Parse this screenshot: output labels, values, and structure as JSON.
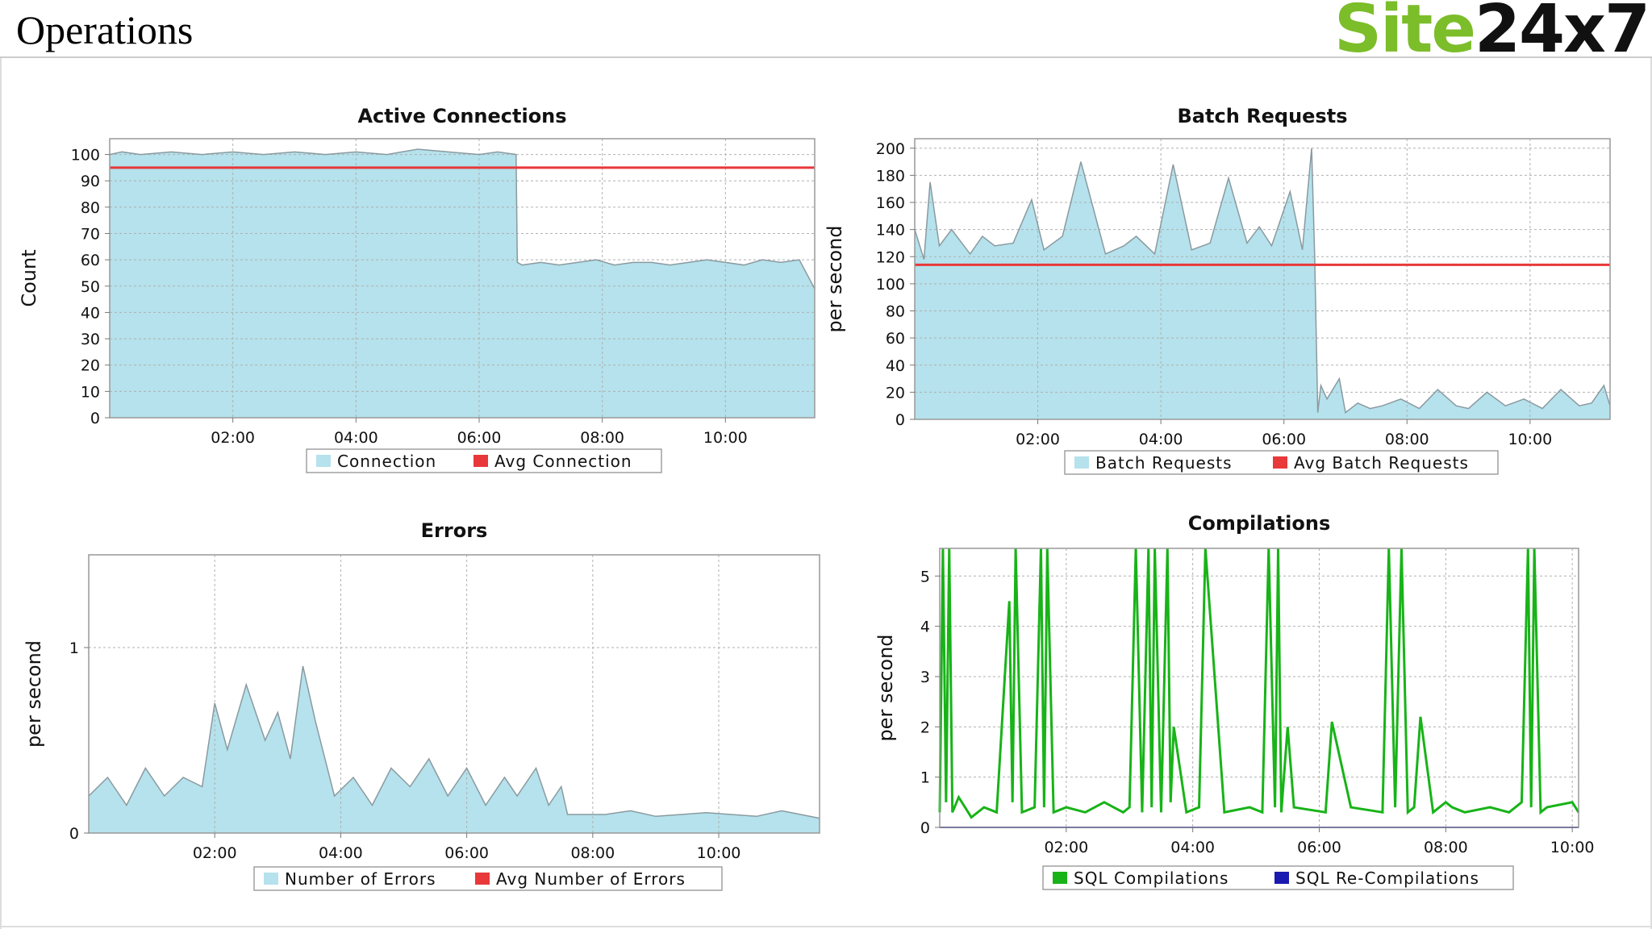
{
  "header": {
    "title": "Operations",
    "logo_part1": "Site",
    "logo_part2": "24x7"
  },
  "colors": {
    "area_fill": "#b5e2ec",
    "area_line": "#8a9aa0",
    "avg_line": "#e8383a",
    "green_series": "#18b318",
    "blue_series": "#1a1ab0",
    "grid": "#b0b0b0",
    "logo_green": "#7cbd2a"
  },
  "chart_data": [
    {
      "id": "active",
      "type": "area",
      "title": "Active Connections",
      "xlabel": "",
      "ylabel": "Count",
      "xlim": [
        0,
        11.45
      ],
      "ylim": [
        0,
        106
      ],
      "yticks": [
        0,
        10,
        20,
        30,
        40,
        50,
        60,
        70,
        80,
        90,
        100
      ],
      "xticks": [
        2,
        4,
        6,
        8,
        10
      ],
      "xticklabels": [
        "02:00",
        "04:00",
        "06:00",
        "08:00",
        "10:00"
      ],
      "grid": true,
      "legend": "bottom",
      "series": [
        {
          "name": "Connection",
          "role": "area",
          "x": [
            0,
            0.2,
            0.5,
            1.0,
            1.5,
            2.0,
            2.5,
            3.0,
            3.5,
            4.0,
            4.5,
            5.0,
            5.5,
            6.0,
            6.3,
            6.6,
            6.62,
            6.7,
            7.0,
            7.3,
            7.6,
            7.9,
            8.2,
            8.5,
            8.8,
            9.1,
            9.4,
            9.7,
            10.0,
            10.3,
            10.6,
            10.9,
            11.2,
            11.45
          ],
          "y": [
            100,
            101,
            100,
            101,
            100,
            101,
            100,
            101,
            100,
            101,
            100,
            102,
            101,
            100,
            101,
            100,
            59,
            58,
            59,
            58,
            59,
            60,
            58,
            59,
            59,
            58,
            59,
            60,
            59,
            58,
            60,
            59,
            60,
            49
          ]
        },
        {
          "name": "Avg Connection",
          "role": "avg",
          "value": 95
        }
      ]
    },
    {
      "id": "batch",
      "type": "area",
      "title": "Batch Requests",
      "xlabel": "",
      "ylabel": "per second",
      "xlim": [
        0,
        11.3
      ],
      "ylim": [
        0,
        207
      ],
      "yticks": [
        0,
        20,
        40,
        60,
        80,
        100,
        120,
        140,
        160,
        180,
        200
      ],
      "xticks": [
        2,
        4,
        6,
        8,
        10
      ],
      "xticklabels": [
        "02:00",
        "04:00",
        "06:00",
        "08:00",
        "10:00"
      ],
      "grid": true,
      "legend": "bottom",
      "series": [
        {
          "name": "Batch Requests",
          "role": "area",
          "x": [
            0,
            0.15,
            0.25,
            0.4,
            0.6,
            0.9,
            1.1,
            1.3,
            1.6,
            1.9,
            2.1,
            2.4,
            2.7,
            3.1,
            3.4,
            3.6,
            3.9,
            4.2,
            4.5,
            4.8,
            5.1,
            5.4,
            5.6,
            5.8,
            6.1,
            6.3,
            6.45,
            6.5,
            6.55,
            6.6,
            6.7,
            6.9,
            7.0,
            7.2,
            7.4,
            7.6,
            7.9,
            8.2,
            8.5,
            8.8,
            9.0,
            9.3,
            9.6,
            9.9,
            10.2,
            10.5,
            10.8,
            11.0,
            11.2,
            11.3
          ],
          "y": [
            140,
            118,
            175,
            128,
            140,
            122,
            135,
            128,
            130,
            162,
            125,
            135,
            190,
            122,
            128,
            135,
            122,
            188,
            125,
            130,
            178,
            130,
            142,
            128,
            168,
            125,
            200,
            120,
            5,
            25,
            15,
            30,
            5,
            12,
            8,
            10,
            15,
            8,
            22,
            10,
            8,
            20,
            10,
            15,
            8,
            22,
            10,
            12,
            25,
            10
          ]
        },
        {
          "name": "Avg Batch Requests",
          "role": "avg",
          "value": 114
        }
      ]
    },
    {
      "id": "errors",
      "type": "area",
      "title": "Errors",
      "xlabel": "",
      "ylabel": "per second",
      "xlim": [
        0,
        11.6
      ],
      "ylim": [
        0,
        1.5
      ],
      "yticks": [
        0,
        1
      ],
      "xticks": [
        2,
        4,
        6,
        8,
        10
      ],
      "xticklabels": [
        "02:00",
        "04:00",
        "06:00",
        "08:00",
        "10:00"
      ],
      "grid": true,
      "legend": "bottom",
      "series": [
        {
          "name": "Number of Errors",
          "role": "area",
          "x": [
            0,
            0.3,
            0.6,
            0.9,
            1.2,
            1.5,
            1.8,
            2.0,
            2.2,
            2.5,
            2.8,
            3.0,
            3.2,
            3.4,
            3.6,
            3.9,
            4.2,
            4.5,
            4.8,
            5.1,
            5.4,
            5.7,
            6.0,
            6.3,
            6.6,
            6.8,
            7.1,
            7.3,
            7.5,
            7.6,
            7.8,
            8.2,
            8.6,
            9.0,
            9.4,
            9.8,
            10.2,
            10.6,
            11.0,
            11.3,
            11.6
          ],
          "y": [
            0.2,
            0.3,
            0.15,
            0.35,
            0.2,
            0.3,
            0.25,
            0.7,
            0.45,
            0.8,
            0.5,
            0.65,
            0.4,
            0.9,
            0.6,
            0.2,
            0.3,
            0.15,
            0.35,
            0.25,
            0.4,
            0.2,
            0.35,
            0.15,
            0.3,
            0.2,
            0.35,
            0.15,
            0.25,
            0.1,
            0.1,
            0.1,
            0.12,
            0.09,
            0.1,
            0.11,
            0.1,
            0.09,
            0.12,
            0.1,
            0.08
          ]
        },
        {
          "name": "Avg Number of Errors",
          "role": "avg",
          "value": null
        }
      ]
    },
    {
      "id": "comp",
      "type": "line",
      "title": "Compilations",
      "xlabel": "",
      "ylabel": "per second",
      "xlim": [
        0,
        10.1
      ],
      "ylim": [
        0,
        5.55
      ],
      "yticks": [
        0,
        1,
        2,
        3,
        4,
        5
      ],
      "xticks": [
        2,
        4,
        6,
        8,
        10
      ],
      "xticklabels": [
        "02:00",
        "04:00",
        "06:00",
        "08:00",
        "10:00"
      ],
      "grid": true,
      "legend": "bottom",
      "series": [
        {
          "name": "SQL Compilations",
          "role": "line",
          "x": [
            0,
            0.05,
            0.1,
            0.15,
            0.2,
            0.3,
            0.5,
            0.7,
            0.9,
            1.1,
            1.15,
            1.2,
            1.3,
            1.5,
            1.6,
            1.65,
            1.7,
            1.8,
            2.0,
            2.3,
            2.6,
            2.9,
            3.0,
            3.1,
            3.2,
            3.3,
            3.35,
            3.4,
            3.5,
            3.6,
            3.65,
            3.7,
            3.9,
            4.1,
            4.2,
            4.5,
            4.9,
            5.1,
            5.2,
            5.3,
            5.35,
            5.4,
            5.5,
            5.6,
            6.1,
            6.2,
            6.5,
            7.0,
            7.1,
            7.2,
            7.3,
            7.4,
            7.5,
            7.6,
            7.8,
            8.0,
            8.1,
            8.3,
            8.7,
            9.0,
            9.2,
            9.3,
            9.35,
            9.4,
            9.5,
            9.6,
            10.0,
            10.1
          ],
          "y": [
            0.3,
            5.6,
            0.5,
            5.6,
            0.3,
            0.6,
            0.2,
            0.4,
            0.3,
            4.5,
            0.5,
            5.6,
            0.3,
            0.4,
            5.6,
            0.4,
            5.6,
            0.3,
            0.4,
            0.3,
            0.5,
            0.3,
            0.4,
            5.6,
            0.3,
            5.6,
            0.4,
            5.6,
            0.3,
            5.6,
            0.5,
            2.0,
            0.3,
            0.4,
            5.6,
            0.3,
            0.4,
            0.3,
            5.6,
            0.4,
            5.6,
            0.3,
            2.0,
            0.4,
            0.3,
            2.1,
            0.4,
            0.3,
            5.6,
            0.4,
            5.6,
            0.3,
            0.4,
            2.2,
            0.3,
            0.5,
            0.4,
            0.3,
            0.4,
            0.3,
            0.5,
            5.6,
            0.4,
            5.6,
            0.3,
            0.4,
            0.5,
            0.3
          ]
        },
        {
          "name": "SQL Re-Compilations",
          "role": "line",
          "x": [
            0,
            10.1
          ],
          "y": [
            0,
            0
          ]
        }
      ]
    }
  ]
}
